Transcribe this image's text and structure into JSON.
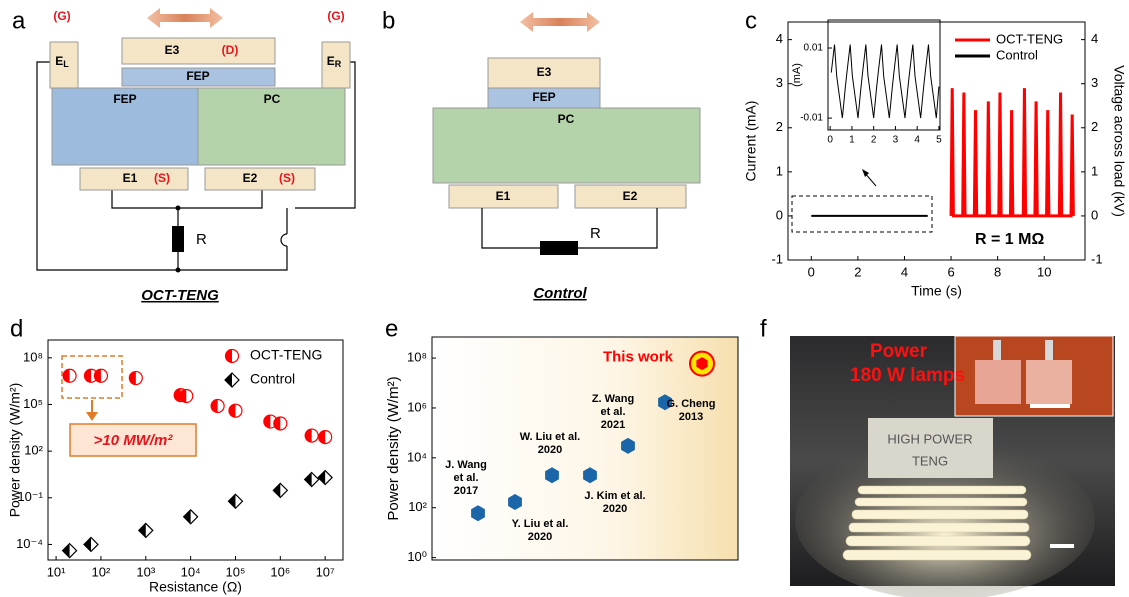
{
  "panel_labels": [
    "a",
    "b",
    "c",
    "d",
    "e",
    "f"
  ],
  "diagram_a": {
    "ground_left": "(G)",
    "ground_right": "(G)",
    "e3": "E3",
    "drain": "(D)",
    "fep_top": "FEP",
    "el": [
      "E",
      "L"
    ],
    "er": [
      "E",
      "R"
    ],
    "fep": "FEP",
    "pc": "PC",
    "e1": "E1",
    "source_1": "(S)",
    "e2": "E2",
    "source_2": "(S)",
    "resistor": "R",
    "caption": "OCT-TENG"
  },
  "diagram_b": {
    "e3": "E3",
    "fep": "FEP",
    "pc": "PC",
    "e1": "E1",
    "e2": "E2",
    "resistor": "R",
    "caption": "Control"
  },
  "chart_data": [
    {
      "type": "line",
      "xlabel": "Time (s)",
      "ylabel": "Current (mA)",
      "y2label": "Voltage across load (kV)",
      "xlim": [
        -1,
        11.75
      ],
      "xticks": [
        0,
        2,
        4,
        6,
        8,
        10
      ],
      "ylim": [
        -1,
        4.4
      ],
      "yticks": [
        -1,
        0,
        1,
        2,
        3,
        4
      ],
      "y2lim": [
        -1,
        4.4
      ],
      "y2ticks": [
        -1,
        0,
        1,
        2,
        3,
        4
      ],
      "series": [
        {
          "name": "OCT-TENG",
          "color": "#ff0000",
          "axis": "y2",
          "x": [
            6.0,
            6.05,
            6.1,
            6.5,
            6.55,
            6.6,
            7.0,
            7.05,
            7.1,
            7.55,
            7.6,
            7.65,
            8.05,
            8.1,
            8.15,
            8.55,
            8.6,
            8.65,
            9.1,
            9.15,
            9.2,
            9.6,
            9.65,
            9.7,
            10.1,
            10.15,
            10.2,
            10.65,
            10.7,
            10.75,
            11.15,
            11.2,
            11.25
          ],
          "values": [
            0,
            2.9,
            0,
            0,
            2.8,
            0,
            0,
            2.4,
            0,
            0,
            2.6,
            0,
            0,
            2.8,
            0,
            0,
            2.4,
            0,
            0,
            2.9,
            0,
            0,
            2.6,
            0,
            0,
            2.4,
            0,
            0,
            2.8,
            0,
            0,
            2.3,
            0
          ]
        },
        {
          "name": "Control",
          "color": "#000000",
          "x": [
            0,
            5
          ],
          "values": [
            0,
            0
          ]
        }
      ],
      "annotation": "R = 1 MΩ",
      "legend": "upper right",
      "inset": {
        "ylabel": "(mA)",
        "xlim": [
          -0.1,
          5.05
        ],
        "xticks": [
          0,
          1,
          2,
          3,
          4,
          5
        ],
        "ylim": [
          -0.0134,
          0.018
        ],
        "yticks": [
          -0.01,
          0.01
        ],
        "series": [
          {
            "color": "#000000",
            "x": [
              0.05,
              0.2,
              0.3,
              0.56,
              0.7,
              0.77,
              0.92,
              1.02,
              1.28,
              1.42,
              1.49,
              1.64,
              1.74,
              2.0,
              2.14,
              2.21,
              2.36,
              2.46,
              2.72,
              2.86,
              2.93,
              3.08,
              3.18,
              3.44,
              3.58,
              3.65,
              3.8,
              3.9,
              4.16,
              4.3,
              4.37,
              4.52,
              4.62,
              4.88,
              5.0
            ],
            "values": [
              0.003,
              0.011,
              0.002,
              -0.01,
              -0.001,
              0.003,
              0.011,
              0.002,
              -0.01,
              -0.001,
              0.003,
              0.011,
              0.002,
              -0.01,
              -0.001,
              0.003,
              0.011,
              0.002,
              -0.01,
              -0.001,
              0.003,
              0.011,
              0.002,
              -0.01,
              -0.001,
              0.003,
              0.011,
              0.002,
              -0.01,
              -0.001,
              0.003,
              0.011,
              0.002,
              -0.01,
              -0.001
            ]
          }
        ]
      }
    },
    {
      "type": "scatter",
      "log_x": true,
      "log_y": true,
      "xlabel": "Resistance (Ω)",
      "ylabel": "Power density (W/m²)",
      "xlim": [
        6.6,
        25000000
      ],
      "xticks": [
        {
          "value": 10,
          "label": "10¹"
        },
        {
          "value": 100,
          "label": "10²"
        },
        {
          "value": 1000,
          "label": "10³"
        },
        {
          "value": 10000,
          "label": "10⁴"
        },
        {
          "value": 100000,
          "label": "10⁵"
        },
        {
          "value": 1000000,
          "label": "10⁶"
        },
        {
          "value": 10000000,
          "label": "10⁷"
        }
      ],
      "ylim": [
        1e-05,
        1400000000
      ],
      "yticks": [
        {
          "value": 0.0001,
          "label": "10⁻⁴"
        },
        {
          "value": 0.1,
          "label": "10⁻¹"
        },
        {
          "value": 100,
          "label": "10²"
        },
        {
          "value": 100000,
          "label": "10⁵"
        },
        {
          "value": 100000000,
          "label": "10⁸"
        }
      ],
      "series": [
        {
          "name": "OCT-TENG",
          "color": "#ff0000",
          "marker": "circle",
          "x": [
            20,
            60,
            100,
            600,
            6000,
            8000,
            40000,
            100000,
            600000,
            1000000,
            5000000,
            10000000
          ],
          "values": [
            7000000,
            7000000,
            7000000,
            5000000,
            400000,
            350000,
            80000,
            40000,
            8000,
            6000,
            1000,
            800
          ]
        },
        {
          "name": "Control",
          "color": "#000000",
          "marker": "diamond",
          "x": [
            20,
            60,
            1000,
            10000,
            100000,
            1000000,
            5000000,
            10000000
          ],
          "values": [
            4e-05,
            0.0001,
            0.0008,
            0.006,
            0.06,
            0.3,
            1.5,
            2
          ]
        }
      ],
      "annotation": ">10 MW/m²",
      "legend": "upper right"
    },
    {
      "type": "scatter",
      "log_y": true,
      "ylabel": "Power density (W/m²)",
      "ylim": [
        0.8,
        700000000
      ],
      "yticks": [
        {
          "value": 1,
          "label": "10⁰"
        },
        {
          "value": 100,
          "label": "10²"
        },
        {
          "value": 10000,
          "label": "10⁴"
        },
        {
          "value": 1000000,
          "label": "10⁶"
        },
        {
          "value": 100000000,
          "label": "10⁸"
        }
      ],
      "categories": [
        [
          "J. Wang",
          "et al.",
          "2017"
        ],
        [
          "Y. Liu et al.",
          "2020"
        ],
        [
          "W. Liu et al.",
          "2020"
        ],
        [
          "J. Kim et al.",
          "2020"
        ],
        [
          "Z. Wang",
          "et al.",
          "2021"
        ],
        [
          "G. Cheng",
          "2013"
        ],
        [
          "This work"
        ]
      ],
      "values": [
        60,
        170,
        2000,
        2000,
        30000,
        1700000,
        60000000
      ],
      "color": "#1a66a8",
      "highlight_color": "#ff0000"
    }
  ],
  "photo_f": {
    "caption_lines": [
      "Power",
      "180 W lamps"
    ],
    "sign_lines": [
      "HIGH POWER",
      "TENG"
    ]
  }
}
